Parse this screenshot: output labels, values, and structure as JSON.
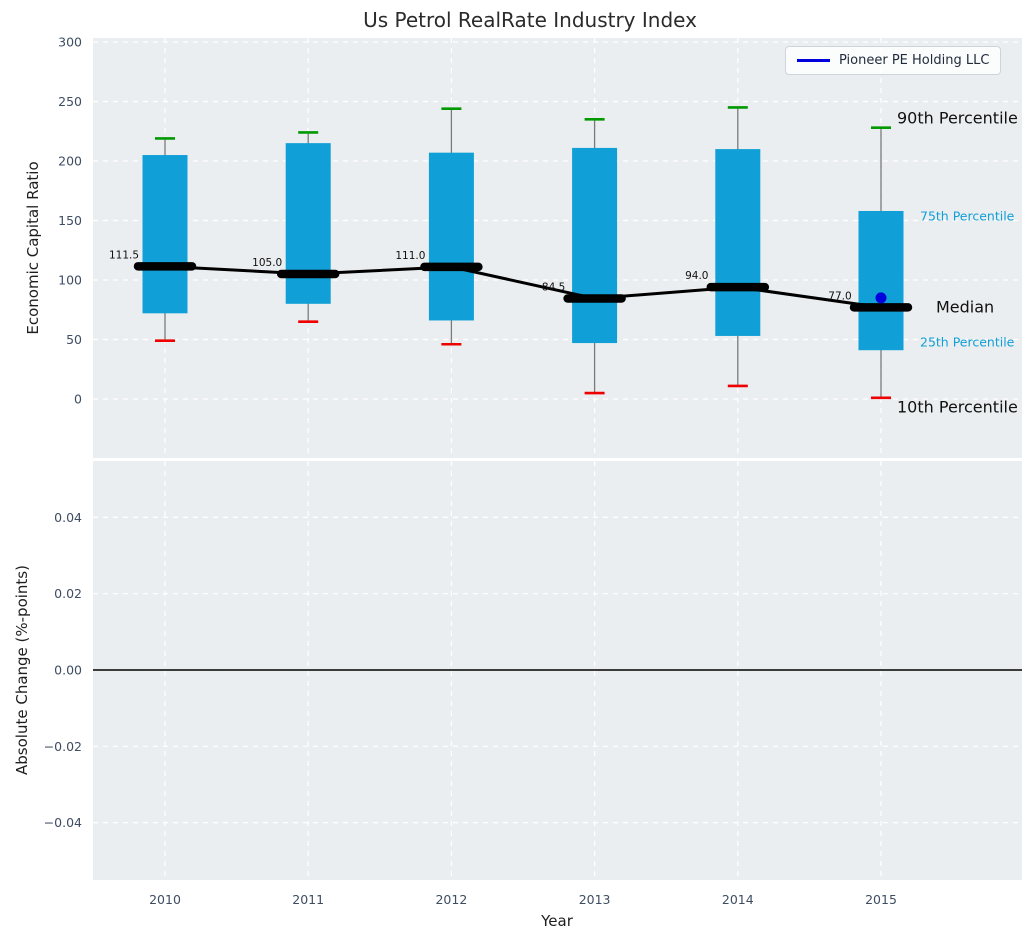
{
  "title": "Us Petrol RealRate Industry Index",
  "legend": {
    "label": "Pioneer PE Holding LLC"
  },
  "chart_data": {
    "type": "boxplot",
    "title": "Us Petrol RealRate Industry Index",
    "xlabel": "Year",
    "categories": [
      2010,
      2011,
      2012,
      2013,
      2014,
      2015
    ],
    "xtick_labels": [
      "2010",
      "2011",
      "2012",
      "2013",
      "2014",
      "2015"
    ],
    "top_panel": {
      "ylabel": "Economic Capital Ratio",
      "ylim": [
        -50,
        303
      ],
      "ytick_values": [
        0,
        50,
        100,
        150,
        200,
        250,
        300
      ],
      "ytick_labels": [
        "0",
        "50",
        "100",
        "150",
        "200",
        "250",
        "300"
      ],
      "grid": true,
      "series": {
        "p90": [
          219,
          224,
          244,
          235,
          245,
          228
        ],
        "p75": [
          205,
          215,
          207,
          211,
          210,
          158
        ],
        "median": [
          111.5,
          105.0,
          111.0,
          84.5,
          94.0,
          77.0
        ],
        "p25": [
          72,
          80,
          66,
          47,
          53,
          41
        ],
        "p10": [
          49,
          65,
          46,
          5,
          11,
          1
        ]
      },
      "median_labels": [
        "111.5",
        "105.0",
        "111.0",
        "84.5",
        "94.0",
        "77.0"
      ],
      "pioneer_point": {
        "year": 2015,
        "value": 85,
        "series": "Pioneer PE Holding LLC"
      },
      "annotations": [
        {
          "text": "90th Percentile",
          "value": 236,
          "style": "large"
        },
        {
          "text": "75th Percentile",
          "value": 154,
          "style": "small"
        },
        {
          "text": "Median",
          "value": 77,
          "style": "large"
        },
        {
          "text": "25th Percentile",
          "value": 48,
          "style": "small"
        },
        {
          "text": "10th Percentile",
          "value": -7,
          "style": "large"
        }
      ]
    },
    "bottom_panel": {
      "ylabel": "Absolute Change (%-points)",
      "ylim": [
        -0.055,
        0.055
      ],
      "ytick_values": [
        0.04,
        0.02,
        0.0,
        -0.02,
        -0.04
      ],
      "ytick_labels": [
        "0.04",
        "0.02",
        "0.00",
        "−0.02",
        "−0.04"
      ],
      "grid": true,
      "zero_line": 0.0
    },
    "colors": {
      "box_fill": "#109fd6",
      "whisker": "#7a7a7a",
      "cap_top": "#009900",
      "cap_bottom": "#ee0000",
      "median_line": "#000000",
      "pioneer_blue": "#0000dd",
      "axes_background": "#ebeef0",
      "gridline": "#ffffff",
      "tick_label": "#3f4d63",
      "annotation_small": "#109fd6"
    }
  }
}
